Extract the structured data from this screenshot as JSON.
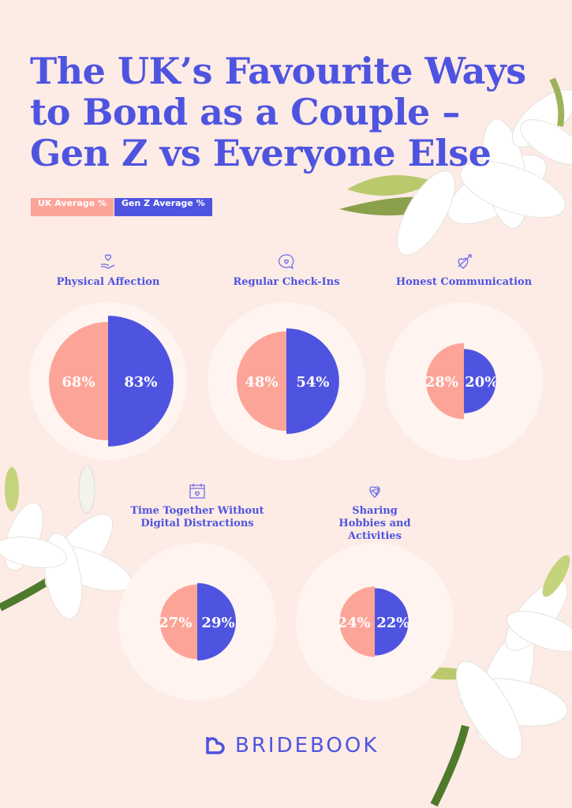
{
  "title": "The UK’s Favourite Ways to Bond as a Couple – Gen Z vs Everyone Else",
  "colors": {
    "uk": "#fda498",
    "genz": "#4e54e0",
    "background": "#fdebe5",
    "ring": "#fff4f0"
  },
  "chart_data": {
    "type": "half-circle comparison",
    "title": "The UK’s Favourite Ways to Bond as a Couple – Gen Z vs Everyone Else",
    "legend": [
      "UK Average %",
      "Gen Z Average %"
    ],
    "legend_placement": "top-left",
    "categories": [
      "Physical Affection",
      "Regular Check-Ins",
      "Honest Communication",
      "Time Together Without Digital Distractions",
      "Sharing Hobbies and Activities"
    ],
    "series": [
      {
        "name": "UK Average %",
        "values": [
          68,
          48,
          28,
          27,
          24
        ],
        "labels": [
          "68%",
          "48%",
          "28%",
          "27%",
          "24%"
        ]
      },
      {
        "name": "Gen Z Average %",
        "values": [
          83,
          54,
          20,
          29,
          22
        ],
        "labels": [
          "83%",
          "54%",
          "20%",
          "29%",
          "22%"
        ]
      }
    ]
  },
  "brand": "BRIDEBOOK"
}
